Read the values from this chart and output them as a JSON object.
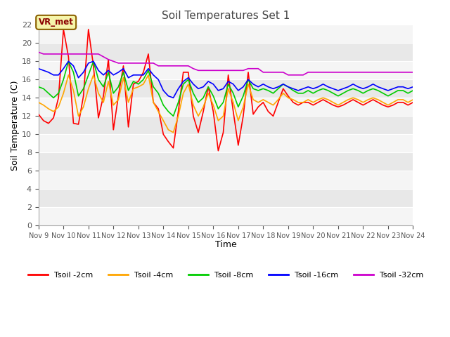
{
  "title": "Soil Temperatures Set 1",
  "xlabel": "Time",
  "ylabel": "Soil Temperature (C)",
  "ylim": [
    0,
    22
  ],
  "xtick_labels": [
    "Nov 9",
    "Nov 10",
    "Nov 11",
    "Nov 12",
    "Nov 13",
    "Nov 14",
    "Nov 15",
    "Nov 16",
    "Nov 17",
    "Nov 18",
    "Nov 19",
    "Nov 20",
    "Nov 21",
    "Nov 22",
    "Nov 23",
    "Nov 24"
  ],
  "annotation": "VR_met",
  "fig_bg": "#ffffff",
  "plot_bg": "#e8e8e8",
  "band_color": "#f5f5f5",
  "line_colors": {
    "2cm": "#ff0000",
    "4cm": "#ffa500",
    "8cm": "#00cc00",
    "16cm": "#0000ff",
    "32cm": "#cc00cc"
  },
  "legend_labels": [
    "Tsoil -2cm",
    "Tsoil -4cm",
    "Tsoil -8cm",
    "Tsoil -16cm",
    "Tsoil -32cm"
  ],
  "t2cm": [
    12.2,
    11.5,
    11.2,
    11.8,
    14.0,
    21.5,
    18.5,
    11.2,
    11.1,
    14.2,
    21.5,
    17.5,
    11.8,
    14.2,
    18.2,
    10.5,
    14.2,
    17.5,
    10.8,
    15.5,
    15.8,
    16.8,
    18.8,
    13.5,
    12.8,
    10.0,
    9.2,
    8.5,
    12.5,
    16.8,
    16.8,
    12.0,
    10.2,
    12.5,
    15.2,
    12.5,
    8.2,
    10.2,
    16.5,
    12.5,
    8.8,
    12.0,
    16.8,
    12.2,
    13.0,
    13.5,
    12.5,
    12.0,
    13.5,
    15.0,
    14.2,
    13.5,
    13.2,
    13.5,
    13.5,
    13.2,
    13.5,
    13.8,
    13.5,
    13.2,
    13.0,
    13.2,
    13.5,
    13.8,
    13.5,
    13.2,
    13.5,
    13.8,
    13.5,
    13.2,
    13.0,
    13.2,
    13.5,
    13.5,
    13.2,
    13.5
  ],
  "t4cm": [
    13.5,
    13.2,
    12.8,
    12.5,
    13.0,
    14.5,
    16.5,
    14.8,
    12.0,
    13.0,
    15.0,
    16.5,
    14.5,
    13.5,
    15.8,
    13.2,
    13.8,
    16.2,
    13.5,
    15.0,
    15.2,
    15.5,
    16.5,
    13.5,
    12.5,
    11.5,
    10.5,
    10.2,
    12.0,
    14.5,
    15.5,
    13.2,
    12.0,
    13.0,
    14.5,
    13.2,
    11.5,
    12.0,
    15.0,
    13.5,
    11.5,
    13.0,
    15.5,
    13.8,
    13.5,
    13.8,
    13.5,
    13.2,
    13.8,
    14.5,
    14.0,
    13.8,
    13.5,
    13.5,
    13.8,
    13.5,
    13.8,
    14.0,
    13.8,
    13.5,
    13.2,
    13.5,
    13.8,
    14.0,
    13.8,
    13.5,
    13.8,
    14.0,
    13.8,
    13.5,
    13.2,
    13.5,
    13.8,
    13.8,
    13.5,
    13.8
  ],
  "t8cm": [
    15.2,
    15.0,
    14.5,
    14.0,
    14.5,
    16.0,
    18.0,
    16.8,
    14.2,
    15.0,
    16.5,
    18.0,
    16.0,
    15.2,
    16.8,
    14.5,
    15.2,
    16.8,
    14.8,
    15.8,
    15.5,
    16.0,
    17.0,
    15.2,
    14.5,
    13.2,
    12.5,
    12.0,
    13.5,
    15.5,
    16.0,
    14.5,
    13.5,
    14.0,
    15.2,
    14.2,
    12.8,
    13.5,
    15.5,
    14.5,
    13.0,
    14.2,
    16.0,
    15.0,
    14.8,
    15.0,
    14.8,
    14.5,
    15.0,
    15.5,
    15.2,
    14.8,
    14.5,
    14.5,
    14.8,
    14.5,
    14.8,
    15.0,
    14.8,
    14.5,
    14.2,
    14.5,
    14.8,
    15.0,
    14.8,
    14.5,
    14.8,
    15.0,
    14.8,
    14.5,
    14.2,
    14.5,
    14.8,
    14.8,
    14.5,
    14.8
  ],
  "t16cm": [
    17.2,
    17.0,
    16.8,
    16.5,
    16.5,
    17.2,
    18.0,
    17.5,
    16.2,
    16.8,
    17.8,
    18.0,
    17.0,
    16.5,
    17.0,
    16.5,
    16.8,
    17.2,
    16.2,
    16.5,
    16.5,
    16.5,
    17.2,
    16.5,
    16.0,
    14.8,
    14.2,
    14.0,
    15.0,
    15.8,
    16.2,
    15.5,
    15.0,
    15.2,
    15.8,
    15.5,
    14.8,
    15.0,
    15.8,
    15.5,
    14.8,
    15.2,
    16.0,
    15.5,
    15.2,
    15.5,
    15.2,
    15.0,
    15.2,
    15.5,
    15.2,
    15.0,
    14.8,
    15.0,
    15.2,
    15.0,
    15.2,
    15.5,
    15.2,
    15.0,
    14.8,
    15.0,
    15.2,
    15.5,
    15.2,
    15.0,
    15.2,
    15.5,
    15.2,
    15.0,
    14.8,
    15.0,
    15.2,
    15.2,
    15.0,
    15.2
  ],
  "t32cm": [
    19.0,
    18.8,
    18.8,
    18.8,
    18.8,
    18.8,
    18.8,
    18.8,
    18.8,
    18.8,
    18.8,
    18.8,
    18.8,
    18.5,
    18.2,
    18.0,
    17.8,
    17.8,
    17.8,
    17.8,
    17.8,
    17.8,
    17.8,
    17.8,
    17.5,
    17.5,
    17.5,
    17.5,
    17.5,
    17.5,
    17.5,
    17.2,
    17.0,
    17.0,
    17.0,
    17.0,
    17.0,
    17.0,
    17.0,
    17.0,
    17.0,
    17.0,
    17.2,
    17.2,
    17.2,
    16.8,
    16.8,
    16.8,
    16.8,
    16.8,
    16.5,
    16.5,
    16.5,
    16.5,
    16.8,
    16.8,
    16.8,
    16.8,
    16.8,
    16.8,
    16.8,
    16.8,
    16.8,
    16.8,
    16.8,
    16.8,
    16.8,
    16.8,
    16.8,
    16.8,
    16.8,
    16.8,
    16.8,
    16.8,
    16.8,
    16.8
  ]
}
